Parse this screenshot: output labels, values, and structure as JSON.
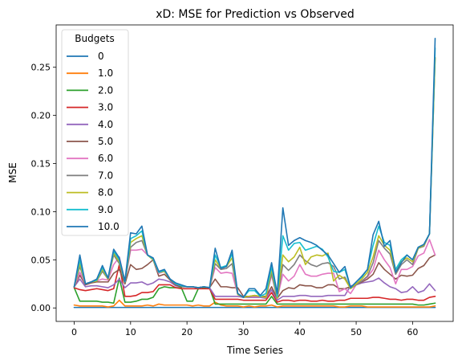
{
  "chart_data": {
    "type": "line",
    "title": "xD: MSE for Prediction vs Observed",
    "xlabel": "Time Series",
    "ylabel": "MSE",
    "xlim": [
      -3.2,
      67.2
    ],
    "ylim": [
      -0.014,
      0.294
    ],
    "xticks": [
      0,
      10,
      20,
      30,
      40,
      50,
      60
    ],
    "yticks": [
      0.0,
      0.05,
      0.1,
      0.15,
      0.2,
      0.25
    ],
    "ytick_labels": [
      "0.00",
      "0.05",
      "0.10",
      "0.15",
      "0.20",
      "0.25"
    ],
    "grid": false,
    "legend": {
      "title": "Budgets",
      "placement": "upper-left"
    },
    "x": [
      0,
      1,
      2,
      3,
      4,
      5,
      6,
      7,
      8,
      9,
      10,
      11,
      12,
      13,
      14,
      15,
      16,
      17,
      18,
      19,
      20,
      21,
      22,
      23,
      24,
      25,
      26,
      27,
      28,
      29,
      30,
      31,
      32,
      33,
      34,
      35,
      36,
      37,
      38,
      39,
      40,
      41,
      42,
      43,
      44,
      45,
      46,
      47,
      48,
      49,
      50,
      51,
      52,
      53,
      54,
      55,
      56,
      57,
      58,
      59,
      60,
      61,
      62,
      63,
      64
    ],
    "series": [
      {
        "name": "0",
        "color": "#1f77b4",
        "values": [
          0.0005,
          0.0005,
          0.0005,
          0.0005,
          0.0005,
          0.0005,
          0.0005,
          0.0005,
          0.0005,
          0.0005,
          0.0005,
          0.0005,
          0.0005,
          0.0005,
          0.0005,
          0.0005,
          0.0005,
          0.0005,
          0.0005,
          0.0005,
          0.0005,
          0.0005,
          0.0005,
          0.0005,
          0.0005,
          0.0005,
          0.0005,
          0.0005,
          0.0005,
          0.0005,
          0.0005,
          0.0005,
          0.0005,
          0.0005,
          0.0005,
          0.0005,
          0.0005,
          0.0005,
          0.0005,
          0.0005,
          0.0005,
          0.0005,
          0.0005,
          0.0005,
          0.0005,
          0.0005,
          0.0005,
          0.0005,
          0.0005,
          0.0005,
          0.0005,
          0.0005,
          0.0005,
          0.0005,
          0.0005,
          0.0005,
          0.0005,
          0.0005,
          0.0005,
          0.0005,
          0.0005,
          0.0005,
          0.0005,
          0.0005,
          0.0005
        ]
      },
      {
        "name": "1.0",
        "color": "#ff7f0e",
        "values": [
          0.003,
          0.002,
          0.002,
          0.002,
          0.002,
          0.002,
          0.001,
          0.002,
          0.008,
          0.002,
          0.002,
          0.002,
          0.002,
          0.003,
          0.002,
          0.004,
          0.003,
          0.003,
          0.003,
          0.003,
          0.003,
          0.002,
          0.003,
          0.002,
          0.002,
          0.006,
          0.003,
          0.002,
          0.002,
          0.002,
          0.001,
          0.002,
          0.001,
          0.002,
          0.002,
          0.003,
          0.001,
          0.002,
          0.002,
          0.002,
          0.002,
          0.002,
          0.002,
          0.002,
          0.002,
          0.002,
          0.002,
          0.001,
          0.001,
          0.002,
          0.002,
          0.002,
          0.001,
          0.001,
          0.001,
          0.001,
          0.001,
          0.001,
          0.001,
          0.001,
          0.001,
          0.001,
          0.001,
          0.001,
          0.002
        ]
      },
      {
        "name": "2.0",
        "color": "#2ca02c",
        "values": [
          0.021,
          0.007,
          0.007,
          0.007,
          0.007,
          0.006,
          0.006,
          0.005,
          0.031,
          0.006,
          0.006,
          0.007,
          0.009,
          0.009,
          0.011,
          0.02,
          0.022,
          0.021,
          0.021,
          0.021,
          0.007,
          0.007,
          0.02,
          0.021,
          0.021,
          0.004,
          0.004,
          0.004,
          0.004,
          0.004,
          0.004,
          0.004,
          0.004,
          0.004,
          0.004,
          0.012,
          0.004,
          0.004,
          0.004,
          0.004,
          0.004,
          0.004,
          0.004,
          0.004,
          0.004,
          0.004,
          0.004,
          0.004,
          0.004,
          0.004,
          0.004,
          0.004,
          0.004,
          0.004,
          0.004,
          0.004,
          0.004,
          0.004,
          0.004,
          0.004,
          0.004,
          0.003,
          0.003,
          0.004,
          0.005
        ]
      },
      {
        "name": "3.0",
        "color": "#d62728",
        "values": [
          0.021,
          0.019,
          0.018,
          0.019,
          0.02,
          0.019,
          0.018,
          0.02,
          0.045,
          0.012,
          0.012,
          0.013,
          0.016,
          0.016,
          0.017,
          0.024,
          0.024,
          0.024,
          0.021,
          0.02,
          0.02,
          0.02,
          0.02,
          0.02,
          0.02,
          0.009,
          0.009,
          0.009,
          0.009,
          0.009,
          0.008,
          0.008,
          0.008,
          0.008,
          0.008,
          0.016,
          0.006,
          0.008,
          0.008,
          0.007,
          0.008,
          0.008,
          0.007,
          0.007,
          0.008,
          0.007,
          0.007,
          0.008,
          0.008,
          0.01,
          0.01,
          0.01,
          0.01,
          0.011,
          0.011,
          0.01,
          0.009,
          0.009,
          0.008,
          0.009,
          0.009,
          0.008,
          0.008,
          0.011,
          0.012
        ]
      },
      {
        "name": "4.0",
        "color": "#9467bd",
        "values": [
          0.022,
          0.03,
          0.022,
          0.023,
          0.023,
          0.022,
          0.021,
          0.024,
          0.03,
          0.021,
          0.026,
          0.026,
          0.027,
          0.024,
          0.026,
          0.03,
          0.029,
          0.027,
          0.023,
          0.022,
          0.022,
          0.022,
          0.021,
          0.022,
          0.021,
          0.012,
          0.012,
          0.012,
          0.012,
          0.012,
          0.011,
          0.011,
          0.011,
          0.011,
          0.01,
          0.019,
          0.008,
          0.012,
          0.012,
          0.012,
          0.013,
          0.013,
          0.012,
          0.012,
          0.012,
          0.013,
          0.013,
          0.013,
          0.013,
          0.023,
          0.024,
          0.026,
          0.027,
          0.028,
          0.031,
          0.026,
          0.022,
          0.02,
          0.016,
          0.017,
          0.022,
          0.016,
          0.018,
          0.025,
          0.018
        ]
      },
      {
        "name": "5.0",
        "color": "#8c564b",
        "values": [
          0.022,
          0.034,
          0.024,
          0.026,
          0.027,
          0.027,
          0.027,
          0.036,
          0.04,
          0.025,
          0.045,
          0.04,
          0.041,
          0.045,
          0.05,
          0.033,
          0.035,
          0.029,
          0.024,
          0.022,
          0.022,
          0.022,
          0.021,
          0.022,
          0.021,
          0.03,
          0.022,
          0.022,
          0.021,
          0.021,
          0.012,
          0.012,
          0.012,
          0.012,
          0.012,
          0.022,
          0.01,
          0.018,
          0.021,
          0.02,
          0.024,
          0.023,
          0.023,
          0.021,
          0.021,
          0.024,
          0.024,
          0.02,
          0.02,
          0.022,
          0.024,
          0.027,
          0.03,
          0.035,
          0.047,
          0.04,
          0.035,
          0.03,
          0.034,
          0.033,
          0.034,
          0.041,
          0.044,
          0.052,
          0.055
        ]
      },
      {
        "name": "6.0",
        "color": "#e377c2",
        "values": [
          0.022,
          0.037,
          0.025,
          0.027,
          0.028,
          0.03,
          0.029,
          0.045,
          0.053,
          0.027,
          0.06,
          0.06,
          0.061,
          0.055,
          0.05,
          0.036,
          0.038,
          0.03,
          0.025,
          0.023,
          0.022,
          0.022,
          0.021,
          0.022,
          0.021,
          0.042,
          0.036,
          0.037,
          0.036,
          0.014,
          0.011,
          0.012,
          0.012,
          0.012,
          0.011,
          0.034,
          0.01,
          0.035,
          0.028,
          0.033,
          0.045,
          0.035,
          0.033,
          0.033,
          0.035,
          0.036,
          0.036,
          0.017,
          0.02,
          0.015,
          0.024,
          0.028,
          0.032,
          0.04,
          0.06,
          0.05,
          0.042,
          0.025,
          0.04,
          0.04,
          0.043,
          0.054,
          0.057,
          0.071,
          0.055
        ]
      },
      {
        "name": "7.0",
        "color": "#7f7f7f",
        "values": [
          0.022,
          0.043,
          0.025,
          0.027,
          0.028,
          0.038,
          0.03,
          0.055,
          0.046,
          0.027,
          0.063,
          0.068,
          0.07,
          0.055,
          0.05,
          0.037,
          0.038,
          0.03,
          0.025,
          0.023,
          0.022,
          0.022,
          0.021,
          0.022,
          0.021,
          0.046,
          0.04,
          0.041,
          0.046,
          0.014,
          0.011,
          0.012,
          0.013,
          0.012,
          0.011,
          0.036,
          0.01,
          0.045,
          0.039,
          0.045,
          0.055,
          0.049,
          0.045,
          0.043,
          0.046,
          0.047,
          0.043,
          0.03,
          0.032,
          0.02,
          0.024,
          0.028,
          0.033,
          0.047,
          0.07,
          0.062,
          0.056,
          0.035,
          0.045,
          0.05,
          0.045,
          0.062,
          0.064,
          0.077,
          0.26
        ]
      },
      {
        "name": "8.0",
        "color": "#bcbd22",
        "values": [
          0.022,
          0.046,
          0.025,
          0.027,
          0.028,
          0.04,
          0.03,
          0.057,
          0.048,
          0.027,
          0.068,
          0.072,
          0.075,
          0.055,
          0.05,
          0.037,
          0.038,
          0.03,
          0.025,
          0.023,
          0.022,
          0.022,
          0.021,
          0.022,
          0.021,
          0.05,
          0.041,
          0.043,
          0.052,
          0.014,
          0.011,
          0.012,
          0.013,
          0.012,
          0.011,
          0.04,
          0.01,
          0.055,
          0.048,
          0.053,
          0.063,
          0.045,
          0.053,
          0.055,
          0.054,
          0.057,
          0.028,
          0.034,
          0.03,
          0.02,
          0.025,
          0.03,
          0.037,
          0.053,
          0.075,
          0.065,
          0.06,
          0.037,
          0.048,
          0.052,
          0.048,
          0.062,
          0.065,
          0.077,
          0.26
        ]
      },
      {
        "name": "9.0",
        "color": "#17becf",
        "values": [
          0.022,
          0.05,
          0.025,
          0.027,
          0.029,
          0.042,
          0.031,
          0.059,
          0.05,
          0.027,
          0.072,
          0.075,
          0.08,
          0.055,
          0.051,
          0.037,
          0.039,
          0.03,
          0.025,
          0.023,
          0.022,
          0.022,
          0.021,
          0.022,
          0.021,
          0.055,
          0.042,
          0.044,
          0.056,
          0.015,
          0.011,
          0.018,
          0.018,
          0.012,
          0.015,
          0.043,
          0.012,
          0.075,
          0.06,
          0.067,
          0.068,
          0.06,
          0.062,
          0.064,
          0.061,
          0.053,
          0.038,
          0.037,
          0.04,
          0.021,
          0.027,
          0.032,
          0.04,
          0.065,
          0.085,
          0.068,
          0.065,
          0.04,
          0.05,
          0.055,
          0.05,
          0.063,
          0.066,
          0.077,
          0.27
        ]
      },
      {
        "name": "10.0",
        "color": "#1f77b4",
        "values": [
          0.022,
          0.055,
          0.025,
          0.027,
          0.03,
          0.044,
          0.031,
          0.061,
          0.052,
          0.028,
          0.078,
          0.077,
          0.085,
          0.055,
          0.052,
          0.038,
          0.04,
          0.03,
          0.026,
          0.024,
          0.022,
          0.022,
          0.021,
          0.022,
          0.021,
          0.062,
          0.041,
          0.043,
          0.06,
          0.015,
          0.011,
          0.02,
          0.02,
          0.013,
          0.02,
          0.047,
          0.015,
          0.104,
          0.065,
          0.07,
          0.073,
          0.07,
          0.068,
          0.065,
          0.06,
          0.055,
          0.046,
          0.037,
          0.043,
          0.021,
          0.027,
          0.033,
          0.04,
          0.076,
          0.09,
          0.064,
          0.07,
          0.037,
          0.047,
          0.055,
          0.05,
          0.063,
          0.066,
          0.077,
          0.28
        ]
      }
    ]
  }
}
